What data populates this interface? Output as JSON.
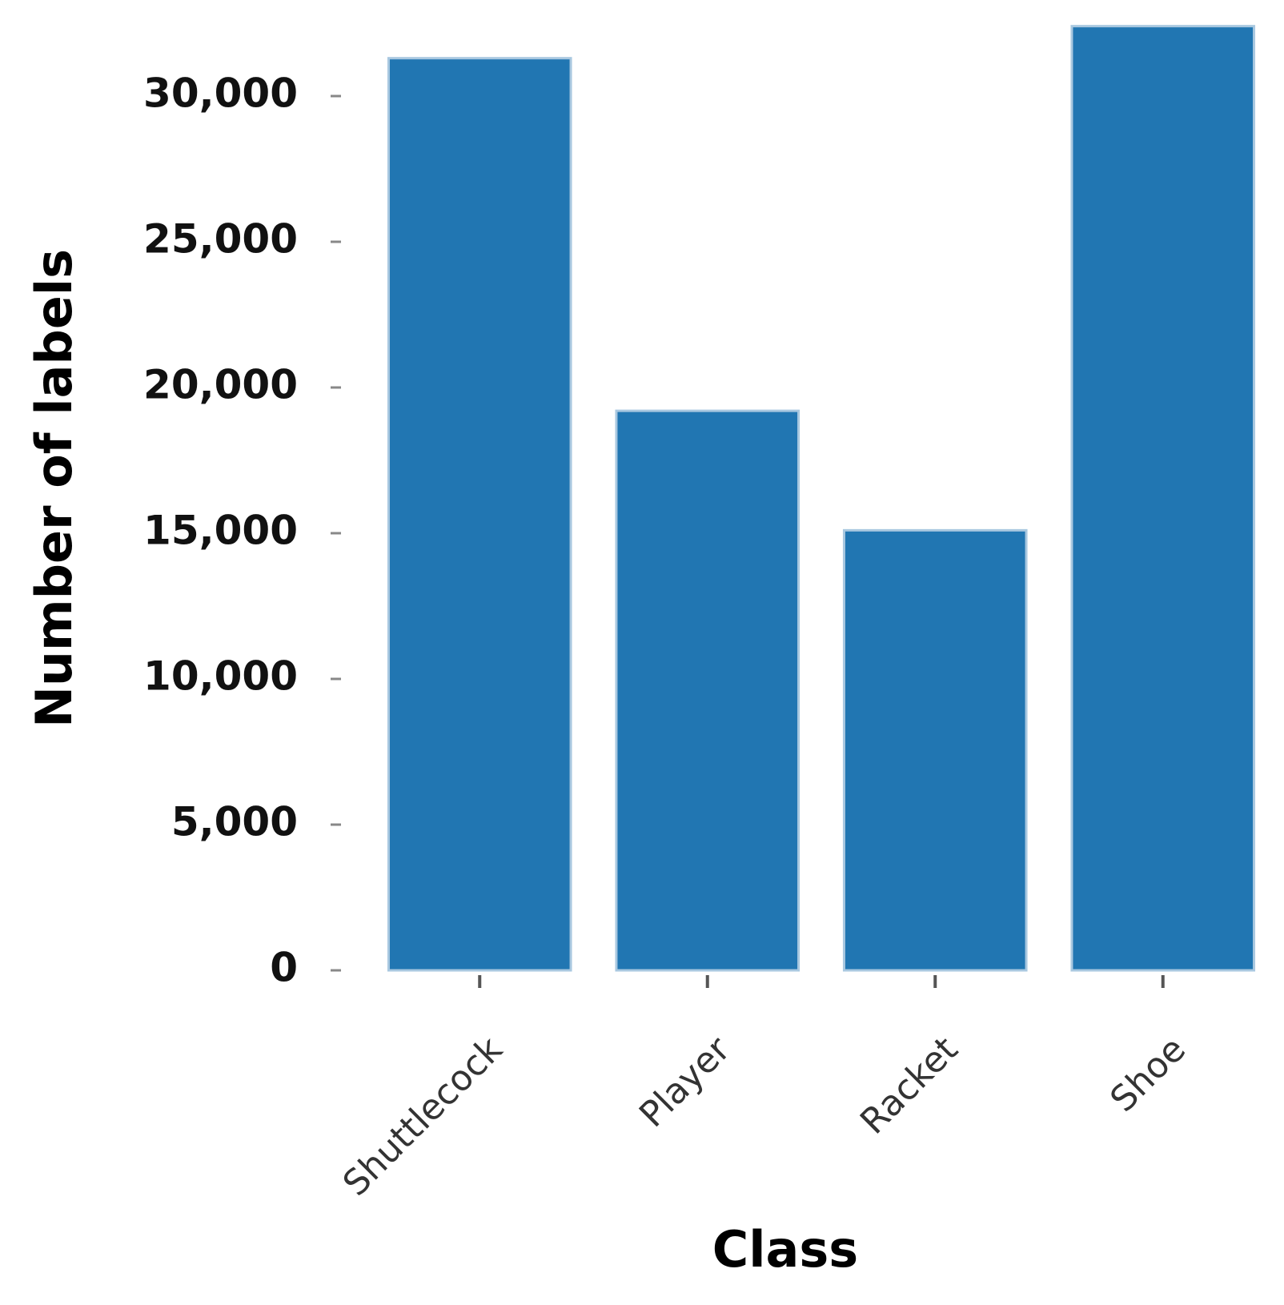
{
  "chart_data": {
    "type": "bar",
    "x_label": "Class",
    "y_label": "Number of labels",
    "categories": [
      "Shuttlecock",
      "Player",
      "Racket",
      "Shoe"
    ],
    "values": [
      31300,
      19200,
      15100,
      32400
    ],
    "color": "#2176b2",
    "ylim": [
      0,
      32500
    ],
    "yticks": [
      0,
      {
        "value": 5000,
        "label": "5,000"
      },
      {
        "value": 10000,
        "label": "10,000"
      },
      {
        "value": 15000,
        "label": "15,000"
      },
      {
        "value": 20000,
        "label": "20,000"
      },
      {
        "value": 25000,
        "label": "25,000"
      },
      {
        "value": 30000,
        "label": "30,000"
      }
    ],
    "grid": false
  }
}
